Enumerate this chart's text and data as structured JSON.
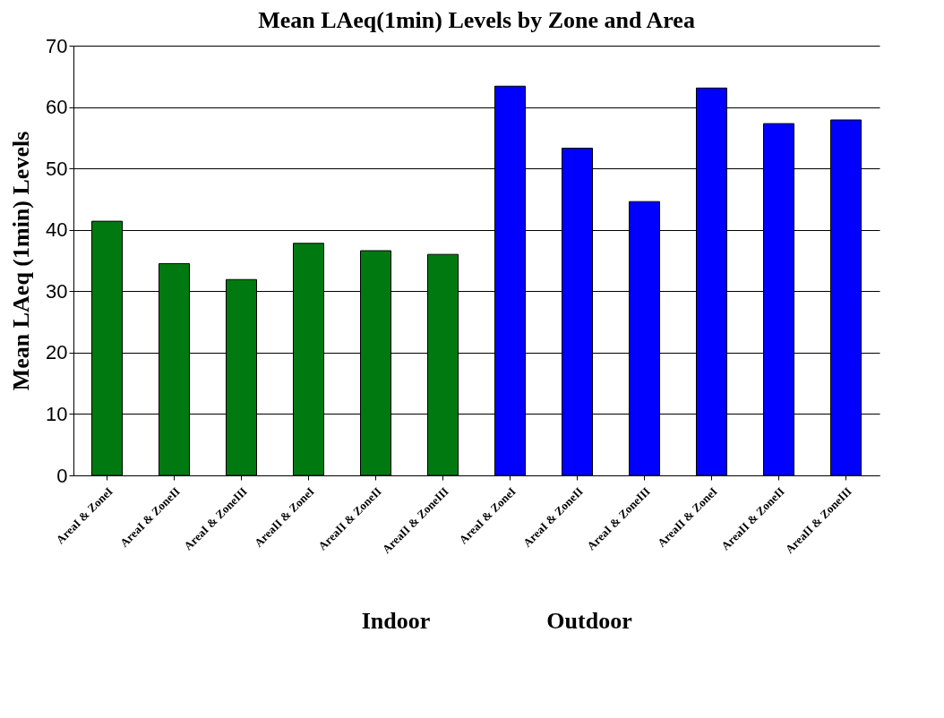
{
  "chart_data": {
    "type": "bar",
    "title": "Mean LAeq(1min) Levels by Zone and Area",
    "ylabel": "Mean LAeq (1min) Levels",
    "categories": [
      "AreaI & ZoneI",
      "AreaI & ZoneII",
      "AreaI & ZoneIII",
      "AreaII & ZoneI",
      "AreaII & ZoneII",
      "AreaII & ZoneIII",
      "AreaI & ZoneI",
      "AreaI & ZoneII",
      "AreaI & ZoneIII",
      "AreaII & ZoneI",
      "AreaII & ZoneII",
      "AreaII & ZoneIII"
    ],
    "values": [
      41.4,
      34.5,
      31.9,
      37.8,
      36.6,
      36.0,
      63.4,
      53.3,
      44.6,
      63.1,
      57.3,
      57.9
    ],
    "colors": [
      "#007a10",
      "#007a10",
      "#007a10",
      "#007a10",
      "#007a10",
      "#007a10",
      "#0000ff",
      "#0000ff",
      "#0000ff",
      "#0000ff",
      "#0000ff",
      "#0000ff"
    ],
    "ylim": [
      0,
      70
    ],
    "yticks": [
      0,
      10,
      20,
      30,
      40,
      50,
      60,
      70
    ],
    "grid": "y",
    "annotations": [
      "Indoor",
      "Outdoor"
    ]
  }
}
